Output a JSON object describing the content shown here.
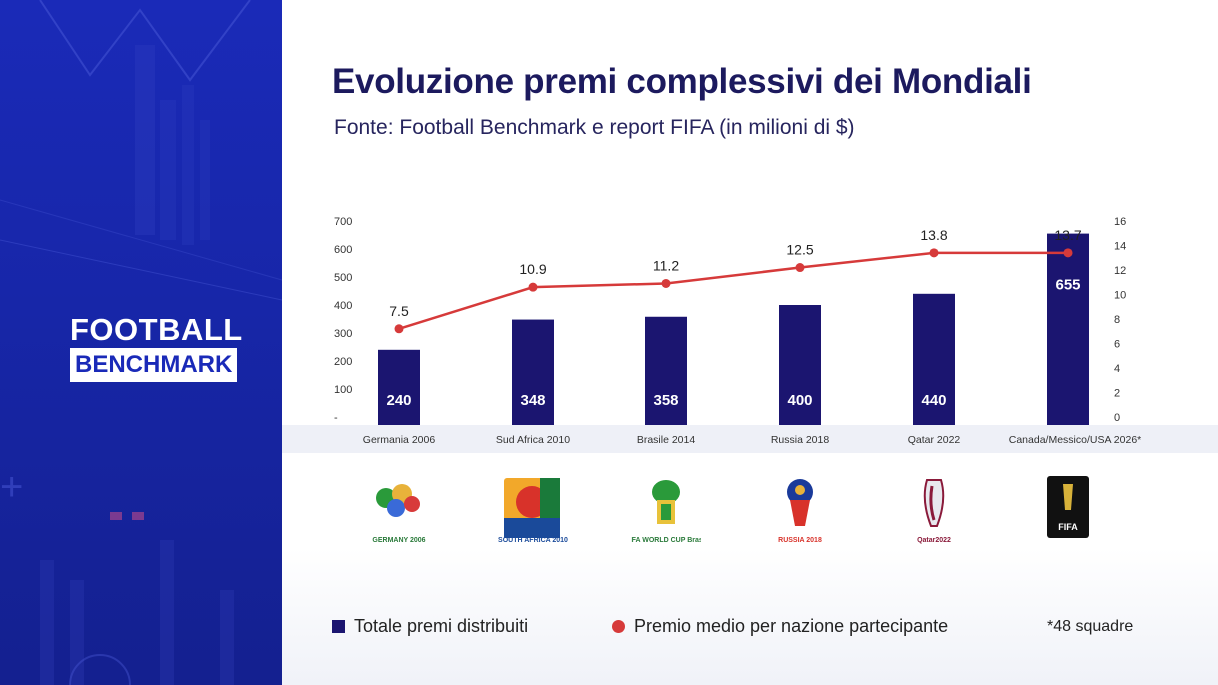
{
  "brand": {
    "line1": "FOOTBALL",
    "line2": "BENCHMARK"
  },
  "chart_data": {
    "type": "bar",
    "title": "Evoluzione premi complessivi dei Mondiali",
    "subtitle": "Fonte: Football Benchmark e report FIFA (in milioni di $)",
    "categories": [
      "Germania 2006",
      "Sud Africa 2010",
      "Brasile 2014",
      "Russia 2018",
      "Qatar 2022",
      "Canada/Messico/USA 2026*"
    ],
    "series": [
      {
        "name": "Totale premi distribuiti",
        "type": "bar",
        "axis": "left",
        "color": "#1b1570",
        "values": [
          240,
          348,
          358,
          400,
          440,
          655
        ]
      },
      {
        "name": "Premio medio per nazione partecipante",
        "type": "line",
        "axis": "right",
        "color": "#d63a3a",
        "values": [
          7.5,
          10.9,
          11.2,
          12.5,
          13.8,
          13.7
        ]
      }
    ],
    "y_left": {
      "ylim": [
        0,
        700
      ],
      "ticks": [
        "-",
        "100",
        "200",
        "300",
        "400",
        "500",
        "600",
        "700"
      ]
    },
    "y_right": {
      "ylim": [
        0,
        16
      ],
      "ticks": [
        "0",
        "2",
        "4",
        "6",
        "8",
        "10",
        "12",
        "14",
        "16"
      ]
    },
    "line_plot_values": [
      7.2,
      10.6,
      10.9,
      12.2,
      13.4,
      13.4
    ],
    "legend_position": "bottom",
    "footnote": "*48 squadre",
    "grid": false
  },
  "logos": [
    {
      "icon": "germany-2006-logo",
      "text": "GERMANY 2006"
    },
    {
      "icon": "south-africa-2010-logo",
      "text": "SOUTH AFRICA 2010"
    },
    {
      "icon": "brazil-2014-logo",
      "text": "FIFA WORLD CUP Brasil"
    },
    {
      "icon": "russia-2018-logo",
      "text": "RUSSIA 2018"
    },
    {
      "icon": "qatar-2022-logo",
      "text": "Qatar2022"
    },
    {
      "icon": "fifa-2026-logo",
      "text": "FIFA"
    }
  ]
}
